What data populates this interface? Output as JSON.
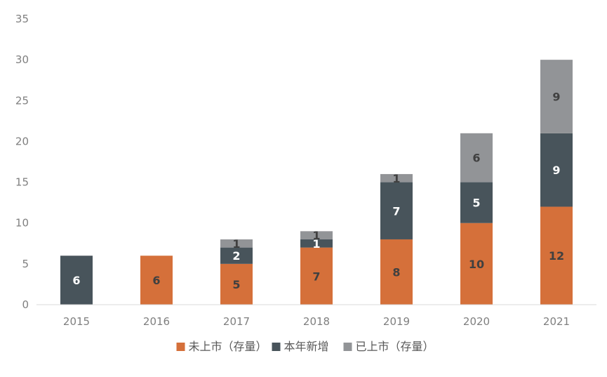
{
  "chart_data": {
    "type": "bar",
    "stacked": true,
    "title": "",
    "xlabel": "",
    "ylabel": "",
    "categories": [
      "2015",
      "2016",
      "2017",
      "2018",
      "2019",
      "2020",
      "2021"
    ],
    "ylim": [
      0,
      35
    ],
    "yticks": [
      "0",
      "5",
      "10",
      "15",
      "20",
      "25",
      "30",
      "35"
    ],
    "grid": false,
    "legend_position": "bottom",
    "series": [
      {
        "name": "未上市（存量）",
        "color": "#D5703A",
        "label_color": "#404040",
        "values": [
          0,
          6,
          5,
          7,
          8,
          10,
          12
        ]
      },
      {
        "name": "本年新增",
        "color": "#48545B",
        "label_color": "#ffffff",
        "values": [
          6,
          0,
          2,
          1,
          7,
          5,
          9
        ]
      },
      {
        "name": "已上市（存量）",
        "color": "#929497",
        "label_color": "#404040",
        "values": [
          0,
          0,
          1,
          1,
          1,
          6,
          9
        ]
      }
    ]
  }
}
